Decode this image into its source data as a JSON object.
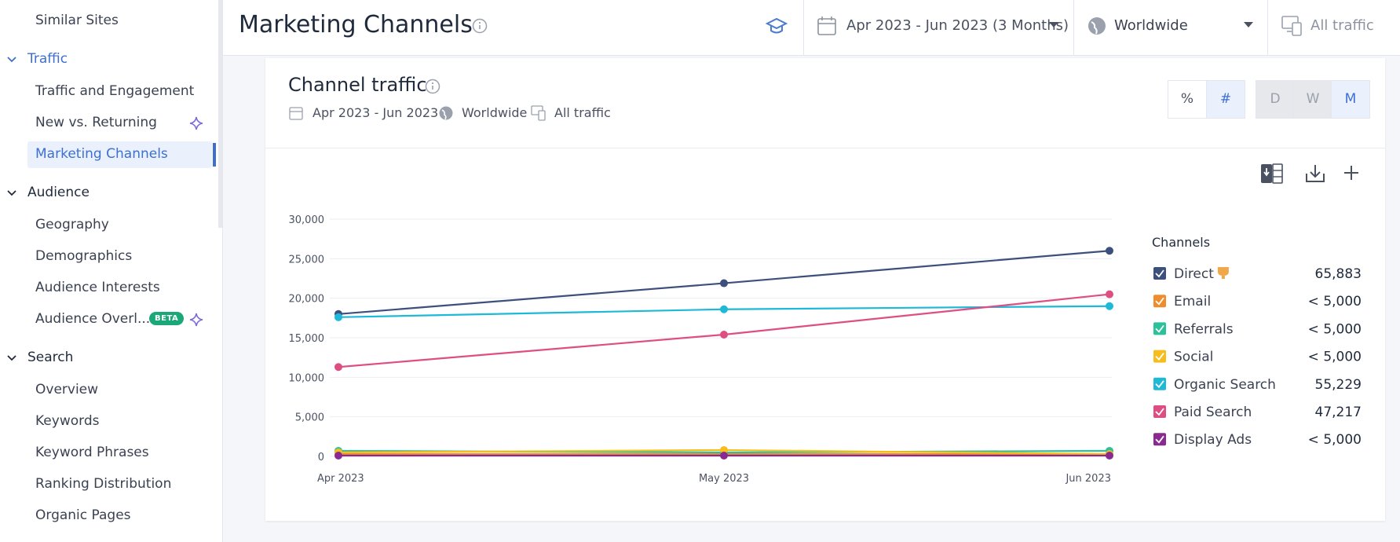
{
  "sidebar": {
    "top_items": [
      "Similar Sites"
    ],
    "sections": [
      {
        "title": "Traffic",
        "items": [
          "Traffic and Engagement",
          "New vs. Returning",
          "Marketing Channels"
        ]
      },
      {
        "title": "Audience",
        "items": [
          "Geography",
          "Demographics",
          "Audience Interests",
          "Audience Overl..."
        ]
      },
      {
        "title": "Search",
        "items": [
          "Overview",
          "Keywords",
          "Keyword Phrases",
          "Ranking Distribution",
          "Organic Pages"
        ]
      }
    ],
    "badge": "BETA"
  },
  "header": {
    "title": "Marketing Channels",
    "date_range": "Apr 2023 - Jun 2023 (3 Months)",
    "region": "Worldwide",
    "traffic": "All traffic"
  },
  "card": {
    "title": "Channel traffic",
    "date_range": "Apr 2023 - Jun 2023",
    "region": "Worldwide",
    "traffic": "All traffic",
    "value_toggle": [
      "%",
      "#"
    ],
    "period_toggle": [
      "D",
      "W",
      "M"
    ]
  },
  "chart_data": {
    "type": "line",
    "legend_title": "Channels",
    "categories": [
      "Apr 2023",
      "May 2023",
      "Jun 2023"
    ],
    "ylim": [
      0,
      30000
    ],
    "yticks": [
      0,
      {
        "value": 5000,
        "label": "5,000"
      },
      {
        "value": 10000,
        "label": "10,000"
      },
      {
        "value": 15000,
        "label": "15,000"
      },
      {
        "value": 20000,
        "label": "20,000"
      },
      {
        "value": 25000,
        "label": "25,000"
      },
      {
        "value": 30000,
        "label": "30,000"
      }
    ],
    "grid": true,
    "series": [
      {
        "name": "Direct",
        "color": "#3d4f7c",
        "values": [
          18000,
          21900,
          26000
        ],
        "total_label": "65,883"
      },
      {
        "name": "Email",
        "color": "#f08c2c",
        "values": [
          300,
          300,
          300
        ],
        "total_label": "< 5,000"
      },
      {
        "name": "Referrals",
        "color": "#2cc19a",
        "values": [
          700,
          500,
          700
        ],
        "total_label": "< 5,000"
      },
      {
        "name": "Social",
        "color": "#f5be1d",
        "values": [
          500,
          800,
          300
        ],
        "total_label": "< 5,000"
      },
      {
        "name": "Organic Search",
        "color": "#1fb9d8",
        "values": [
          17600,
          18600,
          19000
        ],
        "total_label": "55,229"
      },
      {
        "name": "Paid Search",
        "color": "#de4e82",
        "values": [
          11300,
          15400,
          20500
        ],
        "total_label": "47,217"
      },
      {
        "name": "Display Ads",
        "color": "#8a2a91",
        "values": [
          100,
          100,
          100
        ],
        "total_label": "< 5,000"
      }
    ]
  }
}
